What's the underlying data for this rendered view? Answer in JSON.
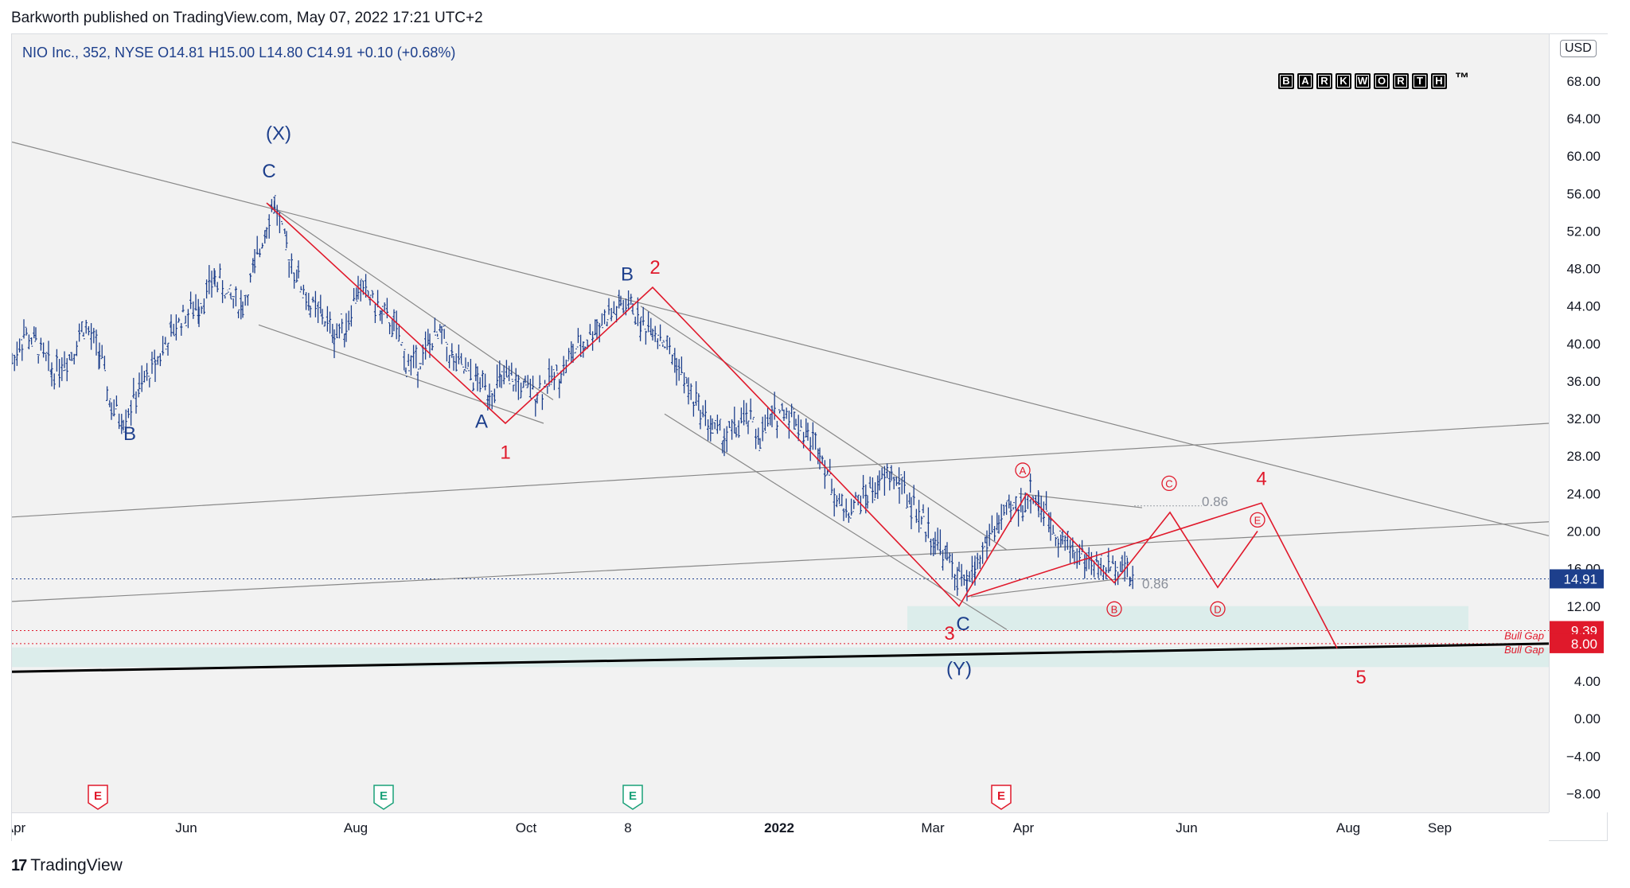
{
  "header": {
    "published": "Barkworth published on TradingView.com, May 07, 2022 17:21 UTC+2"
  },
  "symbol": {
    "line": "NIO Inc., 352, NYSE  O14.81  H15.00  L14.80  C14.91  +0.10 (+0.68%)"
  },
  "currency": "USD",
  "brand": {
    "letters": [
      "B",
      "A",
      "R",
      "K",
      "W",
      "O",
      "R",
      "T",
      "H"
    ],
    "tm": "™"
  },
  "footer": {
    "logo": "17",
    "text": "TradingView"
  },
  "chart_data": {
    "type": "candlestick",
    "title": "NIO Inc., 352, NYSE",
    "last_price": 14.91,
    "ohlc": {
      "open": 14.81,
      "high": 15.0,
      "low": 14.8,
      "close": 14.91,
      "change": 0.1,
      "change_pct": 0.68
    },
    "ylim": [
      -10,
      73
    ],
    "y_ticks": [
      -8,
      -4,
      0,
      4,
      8,
      12,
      16,
      20,
      24,
      28,
      32,
      36,
      40,
      44,
      48,
      52,
      56,
      60,
      64,
      68
    ],
    "y_tick_labels": [
      "−8.00",
      "−4.00",
      "0.00",
      "4.00",
      "8.00",
      "12.00",
      "16.00",
      "20.00",
      "24.00",
      "28.00",
      "32.00",
      "36.00",
      "40.00",
      "44.00",
      "48.00",
      "52.00",
      "56.00",
      "60.00",
      "64.00",
      "68.00"
    ],
    "x_ticks": [
      {
        "label": "Apr",
        "bold": false,
        "x": 0
      },
      {
        "label": "Jun",
        "bold": false,
        "x": 215
      },
      {
        "label": "Aug",
        "bold": false,
        "x": 428
      },
      {
        "label": "Oct",
        "bold": false,
        "x": 642
      },
      {
        "label": "8",
        "bold": false,
        "x": 770
      },
      {
        "label": "2022",
        "bold": true,
        "x": 960
      },
      {
        "label": "Mar",
        "bold": false,
        "x": 1153
      },
      {
        "label": "Apr",
        "bold": false,
        "x": 1267
      },
      {
        "label": "Jun",
        "bold": false,
        "x": 1472
      },
      {
        "label": "Aug",
        "bold": false,
        "x": 1675
      },
      {
        "label": "Sep",
        "bold": false,
        "x": 1790
      }
    ],
    "price_path": [
      [
        0,
        38
      ],
      [
        15,
        41
      ],
      [
        30,
        40
      ],
      [
        50,
        37
      ],
      [
        75,
        39
      ],
      [
        90,
        42
      ],
      [
        110,
        39
      ],
      [
        125,
        33
      ],
      [
        140,
        32
      ],
      [
        160,
        35
      ],
      [
        180,
        38
      ],
      [
        200,
        41
      ],
      [
        215,
        43
      ],
      [
        235,
        44
      ],
      [
        255,
        47
      ],
      [
        275,
        45
      ],
      [
        290,
        44
      ],
      [
        305,
        48
      ],
      [
        320,
        53
      ],
      [
        330,
        55
      ],
      [
        345,
        50
      ],
      [
        360,
        47
      ],
      [
        375,
        44
      ],
      [
        390,
        43
      ],
      [
        405,
        41
      ],
      [
        420,
        42
      ],
      [
        435,
        46
      ],
      [
        450,
        45
      ],
      [
        465,
        43
      ],
      [
        480,
        42
      ],
      [
        495,
        38
      ],
      [
        510,
        38
      ],
      [
        525,
        40
      ],
      [
        540,
        41
      ],
      [
        555,
        38
      ],
      [
        570,
        37
      ],
      [
        585,
        36
      ],
      [
        600,
        35
      ],
      [
        615,
        36
      ],
      [
        630,
        36
      ],
      [
        645,
        35
      ],
      [
        660,
        35
      ],
      [
        675,
        36
      ],
      [
        690,
        37
      ],
      [
        705,
        39
      ],
      [
        720,
        40
      ],
      [
        735,
        42
      ],
      [
        750,
        43
      ],
      [
        765,
        44
      ],
      [
        780,
        44
      ],
      [
        790,
        42
      ],
      [
        805,
        42
      ],
      [
        820,
        40
      ],
      [
        835,
        38
      ],
      [
        850,
        35
      ],
      [
        865,
        33
      ],
      [
        880,
        31
      ],
      [
        895,
        30
      ],
      [
        910,
        31
      ],
      [
        925,
        32
      ],
      [
        940,
        30
      ],
      [
        955,
        32
      ],
      [
        970,
        33
      ],
      [
        985,
        32
      ],
      [
        1000,
        30
      ],
      [
        1015,
        29
      ],
      [
        1030,
        25
      ],
      [
        1045,
        22
      ],
      [
        1060,
        23
      ],
      [
        1075,
        24
      ],
      [
        1090,
        25
      ],
      [
        1105,
        26
      ],
      [
        1115,
        25
      ],
      [
        1130,
        23
      ],
      [
        1145,
        21
      ],
      [
        1160,
        19
      ],
      [
        1175,
        17
      ],
      [
        1190,
        15
      ],
      [
        1200,
        14
      ],
      [
        1210,
        16
      ],
      [
        1225,
        19
      ],
      [
        1240,
        21
      ],
      [
        1255,
        22
      ],
      [
        1270,
        23
      ],
      [
        1280,
        24
      ],
      [
        1290,
        23
      ],
      [
        1305,
        21
      ],
      [
        1320,
        19
      ],
      [
        1335,
        18
      ],
      [
        1350,
        17
      ],
      [
        1365,
        16
      ],
      [
        1380,
        16
      ],
      [
        1395,
        17
      ],
      [
        1405,
        15
      ],
      [
        1410,
        14.9
      ]
    ],
    "trendlines": [
      {
        "from": [
          0,
          61.5
        ],
        "to": [
          1931,
          19.5
        ],
        "color": "#888888",
        "width": 1.2
      },
      {
        "from": [
          0,
          21.5
        ],
        "to": [
          1931,
          31.5
        ],
        "color": "#888888",
        "width": 1.2
      },
      {
        "from": [
          0,
          12.5
        ],
        "to": [
          1931,
          21
        ],
        "color": "#888888",
        "width": 1.2
      },
      {
        "from": [
          320,
          55
        ],
        "to": [
          680,
          34
        ],
        "color": "#888888",
        "width": 1.2
      },
      {
        "from": [
          310,
          42
        ],
        "to": [
          668,
          31.5
        ],
        "color": "#888888",
        "width": 1.2
      },
      {
        "from": [
          790,
          44
        ],
        "to": [
          1250,
          18
        ],
        "color": "#888888",
        "width": 1.2
      },
      {
        "from": [
          820,
          32.5
        ],
        "to": [
          1250,
          9.5
        ],
        "color": "#888888",
        "width": 1.2
      },
      {
        "from": [
          1265,
          24
        ],
        "to": [
          1420,
          22.5
        ],
        "color": "#888888",
        "width": 1.2
      },
      {
        "from": [
          1205,
          13
        ],
        "to": [
          1400,
          15
        ],
        "color": "#888888",
        "width": 1.2
      },
      {
        "from": [
          0,
          5
        ],
        "to": [
          1931,
          8
        ],
        "color": "#000000",
        "width": 3
      }
    ],
    "red_paths": [
      [
        [
          320,
          55
        ],
        [
          620,
          31.5
        ],
        [
          805,
          46
        ],
        [
          1190,
          12
        ],
        [
          1275,
          24
        ],
        [
          1385,
          14.5
        ],
        [
          1455,
          22
        ],
        [
          1515,
          14
        ],
        [
          1565,
          20
        ]
      ],
      [
        [
          1200,
          13
        ],
        [
          1570,
          23
        ],
        [
          1665,
          7.5
        ]
      ]
    ],
    "dotted_lines": [
      {
        "from": [
          1410,
          22.7
        ],
        "to": [
          1495,
          22.7
        ],
        "color": "#9aa0a6"
      },
      {
        "from": [
          1410,
          14.9
        ],
        "to": [
          1430,
          14.9
        ],
        "color": "#9aa0a6"
      }
    ],
    "h_lines": [
      {
        "y": 14.91,
        "color": "#1d3f8c",
        "style": "dotted"
      },
      {
        "y": 9.39,
        "color": "#e0192b",
        "style": "dotted"
      },
      {
        "y": 8.0,
        "color": "#e0192b",
        "style": "dotted"
      }
    ],
    "gap_zones": [
      {
        "x0": 1125,
        "x1": 1830,
        "y0": 9.4,
        "y1": 12.0,
        "label": ""
      },
      {
        "x0": 0,
        "x1": 1931,
        "y0": 5.5,
        "y1": 7.6,
        "label": "Bull Gap"
      }
    ],
    "bull_gap_labels": [
      "Bull Gap",
      "Bull Gap"
    ],
    "price_labels": [
      {
        "text": "14.91",
        "y": 14.91,
        "bg": "#1d3f8c"
      },
      {
        "text": "9.39",
        "y": 9.39,
        "bg": "#e0192b"
      },
      {
        "text": "8.00",
        "y": 8.0,
        "bg": "#e0192b"
      }
    ],
    "fib_labels": [
      {
        "text": "0.86",
        "x": 1495,
        "y": 23.2
      },
      {
        "text": "0.86",
        "x": 1420,
        "y": 14.4
      }
    ],
    "wave_labels_blue": [
      {
        "text": "(X)",
        "x": 335,
        "y": 62.5
      },
      {
        "text": "C",
        "x": 323,
        "y": 58.5
      },
      {
        "text": "B",
        "x": 148,
        "y": 30.5
      },
      {
        "text": "A",
        "x": 590,
        "y": 31.8
      },
      {
        "text": "B",
        "x": 773,
        "y": 47.5
      },
      {
        "text": "C",
        "x": 1195,
        "y": 10.2
      },
      {
        "text": "(Y)",
        "x": 1190,
        "y": 5.4
      }
    ],
    "wave_labels_red": [
      {
        "text": "1",
        "x": 620,
        "y": 28.5
      },
      {
        "text": "2",
        "x": 808,
        "y": 48.2
      },
      {
        "text": "3",
        "x": 1178,
        "y": 9.2
      },
      {
        "text": "4",
        "x": 1570,
        "y": 25.7
      },
      {
        "text": "5",
        "x": 1695,
        "y": 4.5
      }
    ],
    "circled_labels": [
      {
        "text": "A",
        "x": 1270,
        "y": 26.5
      },
      {
        "text": "B",
        "x": 1385,
        "y": 11.7
      },
      {
        "text": "C",
        "x": 1454,
        "y": 25.1
      },
      {
        "text": "D",
        "x": 1515,
        "y": 11.7
      },
      {
        "text": "E",
        "x": 1565,
        "y": 21.2
      }
    ],
    "earnings_markers": [
      {
        "label": "E",
        "x": 108,
        "color": "#e0192b"
      },
      {
        "label": "E",
        "x": 467,
        "color": "#1aa179"
      },
      {
        "label": "E",
        "x": 780,
        "color": "#1aa179"
      },
      {
        "label": "E",
        "x": 1243,
        "color": "#e0192b"
      }
    ]
  }
}
